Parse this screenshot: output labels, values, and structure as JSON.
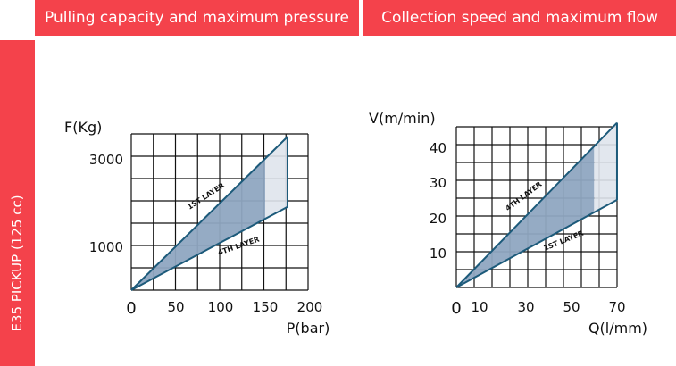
{
  "header": {
    "left_title": "Pulling capacity and maximum pressure",
    "right_title": "Collection speed and maximum flow"
  },
  "sidebar": {
    "label": "E35 PICKUP (125 cc)"
  },
  "colors": {
    "brand_red": "#f4424b",
    "fill_dark": "#8fa6c1",
    "fill_light": "#dfe4ec",
    "line_blue": "#1c5a7a",
    "grid": "#111111"
  },
  "chart_data": [
    {
      "type": "area",
      "xlabel": "P(bar)",
      "ylabel": "F(Kg)",
      "xlim": [
        0,
        200
      ],
      "ylim": [
        0,
        3500
      ],
      "xticks": [
        "0",
        "50",
        "100",
        "150",
        "200"
      ],
      "yticks": [
        "1000",
        "3000"
      ],
      "grid": true,
      "series": [
        {
          "name": "1ST LAYER",
          "x": [
            0,
            175
          ],
          "y": [
            0,
            3500
          ]
        },
        {
          "name": "4TH LAYER",
          "x": [
            0,
            175
          ],
          "y": [
            0,
            1900
          ]
        }
      ],
      "max_working_x": 150,
      "annotations": [
        {
          "text": "1ST LAYER"
        },
        {
          "text": "4TH LAYER"
        }
      ]
    },
    {
      "type": "area",
      "xlabel": "Q(l/mm)",
      "ylabel": "V(m/min)",
      "xlim": [
        0,
        70
      ],
      "ylim": [
        0,
        47
      ],
      "xticks": [
        "0",
        "10",
        "30",
        "50",
        "70"
      ],
      "yticks": [
        "10",
        "20",
        "30",
        "40"
      ],
      "grid": true,
      "series": [
        {
          "name": "4TH LAYER",
          "x": [
            0,
            70
          ],
          "y": [
            0,
            47
          ]
        },
        {
          "name": "1ST LAYER",
          "x": [
            0,
            70
          ],
          "y": [
            0,
            25
          ]
        }
      ],
      "max_working_x": 60,
      "annotations": [
        {
          "text": "4TH LAYER"
        },
        {
          "text": "1ST LAYER"
        }
      ]
    }
  ]
}
